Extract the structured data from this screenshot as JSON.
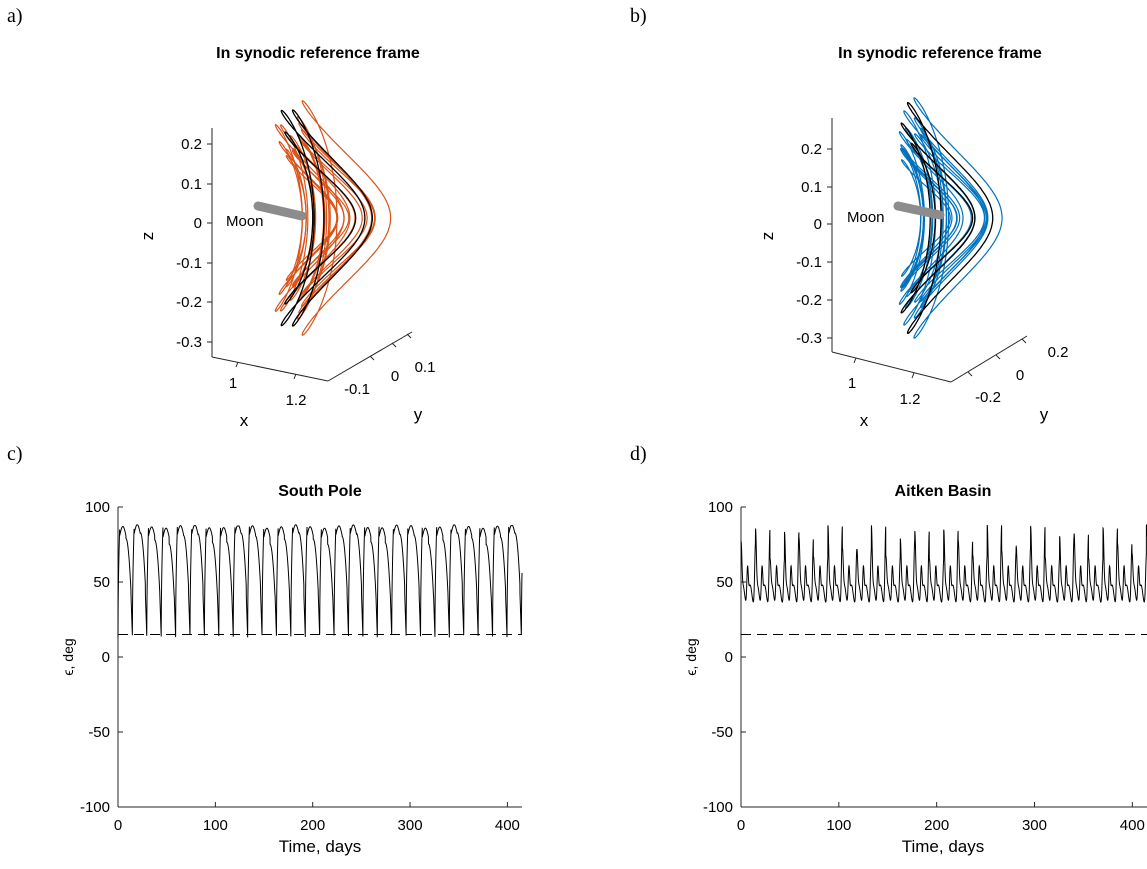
{
  "colors": {
    "orbit_a": "#d95319",
    "orbit_b": "#0072bd",
    "reference_orbit": "#000000",
    "moon": "#8c8c8c",
    "axes": "#262626"
  },
  "panels": {
    "a": {
      "letter": "a)",
      "title": "In synodic reference frame"
    },
    "b": {
      "letter": "b)",
      "title": "In synodic reference frame"
    },
    "c": {
      "letter": "c)",
      "title": "South Pole"
    },
    "d": {
      "letter": "d)",
      "title": "Aitken Basin"
    }
  },
  "chart_data": [
    {
      "panel": "a",
      "type": "line",
      "projection": "3d",
      "title": "In synodic reference frame",
      "xlabel": "x",
      "ylabel": "y",
      "zlabel": "z",
      "xticks": [
        "1",
        "1.2"
      ],
      "yticks": [
        "-0.1",
        "0",
        "0.1"
      ],
      "zticks": [
        "0.2",
        "0.1",
        "0",
        "-0.1",
        "-0.2",
        "-0.3"
      ],
      "zlim": [
        -0.3,
        0.25
      ],
      "annotation": "Moon",
      "series": [
        {
          "role": "perturbed-orbits",
          "color": "#d95319",
          "revolutions": 14
        },
        {
          "role": "reference-orbit",
          "color": "#000000",
          "revolutions": 3
        }
      ]
    },
    {
      "panel": "b",
      "type": "line",
      "projection": "3d",
      "title": "In synodic reference frame",
      "xlabel": "x",
      "ylabel": "y",
      "zlabel": "z",
      "xticks": [
        "1",
        "1.2"
      ],
      "yticks": [
        "-0.2",
        "0",
        "0.2"
      ],
      "zticks": [
        "0.2",
        "0.1",
        "0",
        "-0.1",
        "-0.2",
        "-0.3"
      ],
      "zlim": [
        -0.3,
        0.25
      ],
      "annotation": "Moon",
      "series": [
        {
          "role": "perturbed-orbits",
          "color": "#0072bd",
          "revolutions": 14
        },
        {
          "role": "reference-orbit",
          "color": "#000000",
          "revolutions": 3
        }
      ]
    },
    {
      "panel": "c",
      "type": "line",
      "title": "South Pole",
      "xlabel": "Time, days",
      "ylabel": "ϵ, deg",
      "xlim": [
        0,
        415
      ],
      "ylim": [
        -100,
        100
      ],
      "xticks": [
        0,
        100,
        200,
        300,
        400
      ],
      "yticks": [
        100,
        50,
        0,
        -50,
        -100
      ],
      "threshold": 15,
      "period_days": 14.8,
      "peak_deg": 87,
      "min_deg": 13
    },
    {
      "panel": "d",
      "type": "line",
      "title": "Aitken Basin",
      "xlabel": "Time, days",
      "ylabel": "ϵ, deg",
      "xlim": [
        0,
        415
      ],
      "ylim": [
        -100,
        100
      ],
      "xticks": [
        0,
        100,
        200,
        300,
        400
      ],
      "yticks": [
        100,
        50,
        0,
        -50,
        -100
      ],
      "threshold": 15,
      "period_days": 14.8,
      "peak_deg": 88,
      "min_deg": 32
    }
  ]
}
